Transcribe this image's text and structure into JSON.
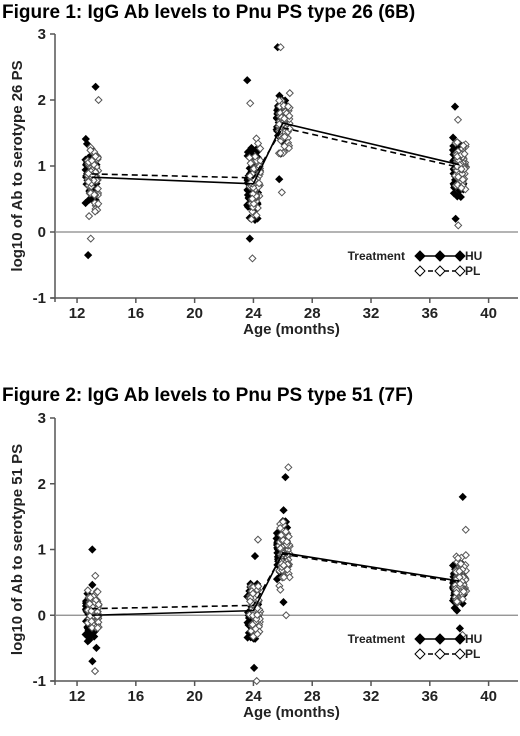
{
  "chart_data": [
    {
      "type": "scatter",
      "title": "Figure 1: IgG Ab levels to Pnu PS type 26 (6B)",
      "xlabel": "Age (months)",
      "ylabel": "log10 of Ab to serotype 26 PS",
      "xlim": [
        10.5,
        42
      ],
      "ylim": [
        -1,
        3
      ],
      "xticks": [
        12,
        16,
        20,
        24,
        28,
        32,
        36,
        40
      ],
      "yticks": [
        -1,
        0,
        1,
        2,
        3
      ],
      "reference_line_y": 0,
      "grid": false,
      "legend": {
        "title": "Treatment",
        "position": "bottom-right"
      },
      "series": [
        {
          "name": "HU",
          "marker": "filled-diamond",
          "line_style": "solid",
          "color": "#000000",
          "mean_line": {
            "x": [
              13,
              24,
              26,
              38
            ],
            "y": [
              0.83,
              0.73,
              1.65,
              1.02
            ]
          },
          "points": [
            {
              "x": 13,
              "min": -0.35,
              "max": 2.2,
              "center": 0.85,
              "spread": 0.42,
              "n": 90
            },
            {
              "x": 24,
              "min": -0.1,
              "max": 2.3,
              "center": 0.75,
              "spread": 0.45,
              "n": 80
            },
            {
              "x": 26,
              "min": 0.8,
              "max": 2.8,
              "center": 1.7,
              "spread": 0.35,
              "n": 90
            },
            {
              "x": 38,
              "min": 0.2,
              "max": 1.9,
              "center": 1.0,
              "spread": 0.35,
              "n": 90
            }
          ]
        },
        {
          "name": "PL",
          "marker": "open-diamond",
          "line_style": "dashed",
          "color": "#000000",
          "mean_line": {
            "x": [
              13,
              24,
              26,
              38
            ],
            "y": [
              0.88,
              0.82,
              1.58,
              0.98
            ]
          },
          "points": [
            {
              "x": 13,
              "min": -0.1,
              "max": 2.0,
              "center": 0.85,
              "spread": 0.42,
              "n": 80
            },
            {
              "x": 24,
              "min": -0.4,
              "max": 1.95,
              "center": 0.8,
              "spread": 0.45,
              "n": 70
            },
            {
              "x": 26,
              "min": 0.6,
              "max": 2.8,
              "center": 1.6,
              "spread": 0.38,
              "n": 80
            },
            {
              "x": 38,
              "min": 0.1,
              "max": 1.7,
              "center": 1.0,
              "spread": 0.35,
              "n": 80
            }
          ]
        }
      ]
    },
    {
      "type": "scatter",
      "title": "Figure 2: IgG Ab levels to Pnu PS type 51 (7F)",
      "xlabel": "Age (months)",
      "ylabel": "log10 of Ab to serotype 51 PS",
      "xlim": [
        10.5,
        42
      ],
      "ylim": [
        -1,
        3
      ],
      "xticks": [
        12,
        16,
        20,
        24,
        28,
        32,
        36,
        40
      ],
      "yticks": [
        -1,
        0,
        1,
        2,
        3
      ],
      "reference_line_y": 0,
      "grid": false,
      "legend": {
        "title": "Treatment",
        "position": "bottom-right"
      },
      "series": [
        {
          "name": "HU",
          "marker": "filled-diamond",
          "line_style": "solid",
          "color": "#000000",
          "mean_line": {
            "x": [
              13,
              24,
              26,
              38
            ],
            "y": [
              0.0,
              0.07,
              0.95,
              0.52
            ]
          },
          "points": [
            {
              "x": 13,
              "min": -0.7,
              "max": 1.0,
              "center": 0.0,
              "spread": 0.35,
              "n": 90
            },
            {
              "x": 24,
              "min": -0.8,
              "max": 0.9,
              "center": 0.05,
              "spread": 0.35,
              "n": 80
            },
            {
              "x": 26,
              "min": 0.2,
              "max": 2.1,
              "center": 1.0,
              "spread": 0.4,
              "n": 90
            },
            {
              "x": 38,
              "min": -0.2,
              "max": 1.8,
              "center": 0.5,
              "spread": 0.3,
              "n": 90
            }
          ]
        },
        {
          "name": "PL",
          "marker": "open-diamond",
          "line_style": "dashed",
          "color": "#000000",
          "mean_line": {
            "x": [
              13,
              24,
              26,
              38
            ],
            "y": [
              0.1,
              0.15,
              0.93,
              0.5
            ]
          },
          "points": [
            {
              "x": 13,
              "min": -0.85,
              "max": 0.6,
              "center": 0.05,
              "spread": 0.3,
              "n": 80
            },
            {
              "x": 24,
              "min": -1.0,
              "max": 1.15,
              "center": 0.1,
              "spread": 0.38,
              "n": 70
            },
            {
              "x": 26,
              "min": 0.0,
              "max": 2.25,
              "center": 0.95,
              "spread": 0.4,
              "n": 80
            },
            {
              "x": 38,
              "min": -0.3,
              "max": 1.3,
              "center": 0.5,
              "spread": 0.3,
              "n": 80
            }
          ]
        }
      ]
    }
  ]
}
